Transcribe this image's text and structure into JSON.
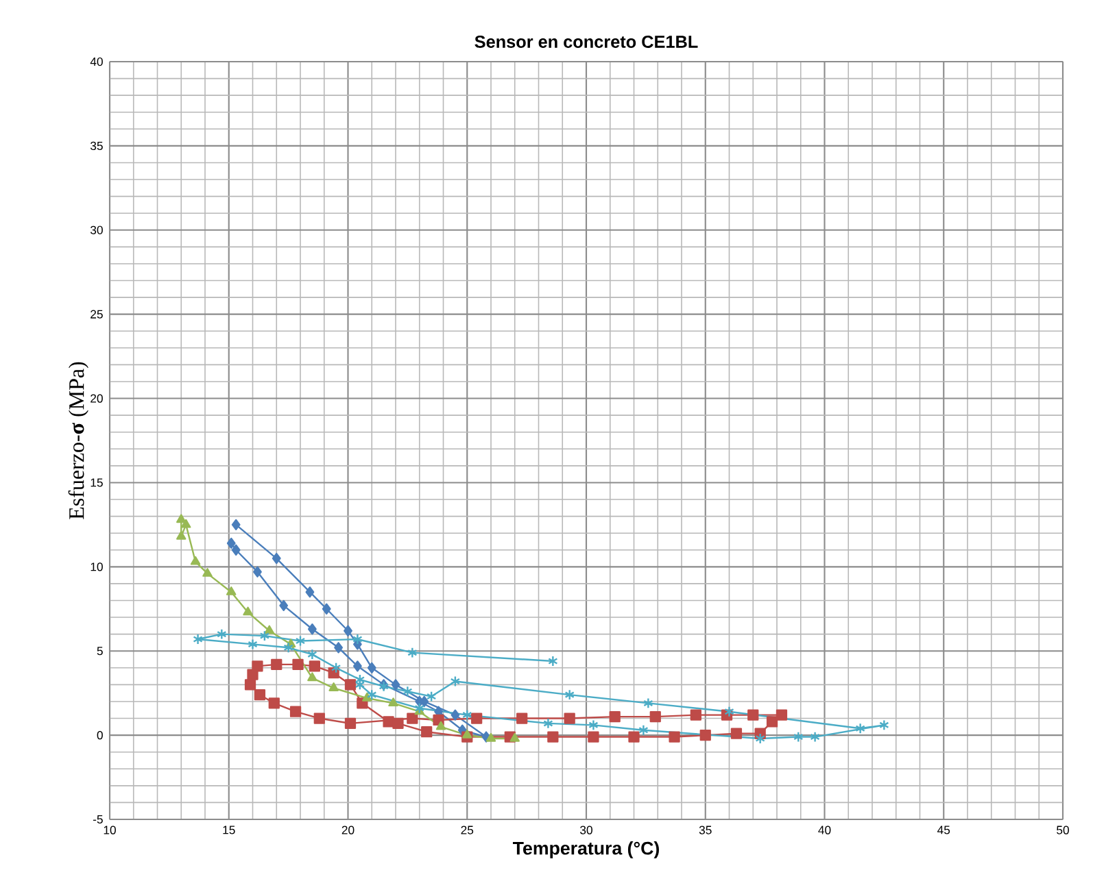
{
  "chart_data": {
    "type": "line",
    "title": "Sensor en concreto CE1BL",
    "xlabel": "Temperatura (°C)",
    "ylabel": "Esfuerzo-**σ** (MPa)",
    "xlim": [
      10,
      50
    ],
    "ylim": [
      -5,
      40
    ],
    "xticks": [
      10,
      15,
      20,
      25,
      30,
      35,
      40,
      45,
      50
    ],
    "yticks": [
      -5,
      0,
      5,
      10,
      15,
      20,
      25,
      30,
      35,
      40
    ],
    "grid": true,
    "series": [
      {
        "color": "#4a7ebb",
        "marker": "diamond",
        "x": [
          15.1,
          15.3,
          16.2,
          17.3,
          18.5,
          19.6,
          20.4,
          21.5,
          23.0,
          23.8,
          24.8,
          25.8,
          24.5,
          23.2,
          22.0,
          21.0,
          20.4,
          20.0,
          19.1,
          18.4,
          17.0,
          15.3
        ],
        "values": [
          11.4,
          11.0,
          9.7,
          7.7,
          6.3,
          5.2,
          4.1,
          3.0,
          2.0,
          1.4,
          0.3,
          -0.1,
          1.2,
          2.0,
          3.0,
          4.0,
          5.4,
          6.2,
          7.5,
          8.5,
          10.5,
          12.5
        ]
      },
      {
        "color": "#be4b48",
        "marker": "square",
        "x": [
          37.8,
          37.3,
          36.3,
          35.0,
          33.7,
          32.0,
          30.3,
          28.6,
          26.8,
          25.0,
          23.3,
          22.1,
          21.7,
          20.6,
          20.1,
          19.4,
          18.6,
          17.9,
          17.0,
          16.2,
          16.0,
          15.9,
          16.3,
          16.9,
          17.8,
          18.8,
          20.1,
          22.7,
          23.8,
          25.4,
          27.3,
          29.3,
          31.2,
          32.9,
          34.6,
          35.9,
          37.0,
          38.2
        ],
        "values": [
          0.8,
          0.1,
          0.1,
          0.0,
          -0.1,
          -0.1,
          -0.1,
          -0.1,
          -0.1,
          -0.1,
          0.2,
          0.7,
          0.8,
          1.9,
          3.0,
          3.7,
          4.1,
          4.2,
          4.2,
          4.1,
          3.6,
          3.0,
          2.4,
          1.9,
          1.4,
          1.0,
          0.7,
          1.0,
          0.9,
          1.0,
          1.0,
          1.0,
          1.1,
          1.1,
          1.2,
          1.2,
          1.2,
          1.2
        ]
      },
      {
        "color": "#98b954",
        "marker": "triangle",
        "x": [
          13.0,
          13.0,
          13.2,
          13.6,
          14.1,
          15.1,
          15.8,
          16.7,
          17.6,
          18.5,
          19.4,
          20.8,
          21.9,
          23.0,
          23.9,
          25.0,
          26.0,
          27.0
        ],
        "values": [
          12.8,
          11.8,
          12.5,
          10.3,
          9.6,
          8.5,
          7.3,
          6.2,
          5.4,
          3.4,
          2.8,
          2.2,
          1.9,
          1.4,
          0.5,
          0.0,
          -0.2,
          -0.2
        ]
      },
      {
        "color": "#4bacc6",
        "marker": "cross",
        "x": [
          28.6,
          22.7,
          20.4,
          18.0,
          16.5,
          14.7,
          13.7,
          16.0,
          17.5,
          18.5,
          19.5,
          20.5,
          21.5,
          22.5,
          23.5,
          24.5,
          29.3,
          32.6,
          36.0,
          41.5,
          42.5,
          39.6,
          38.9,
          37.3,
          32.4,
          30.3,
          28.4,
          25.0,
          23.0,
          21.0,
          20.5
        ],
        "values": [
          4.4,
          4.9,
          5.7,
          5.6,
          5.9,
          6.0,
          5.7,
          5.4,
          5.2,
          4.8,
          4.0,
          3.3,
          2.9,
          2.6,
          2.3,
          3.2,
          2.4,
          1.9,
          1.4,
          0.4,
          0.6,
          -0.1,
          -0.1,
          -0.2,
          0.3,
          0.6,
          0.7,
          1.2,
          1.6,
          2.4,
          3.0
        ]
      }
    ]
  }
}
